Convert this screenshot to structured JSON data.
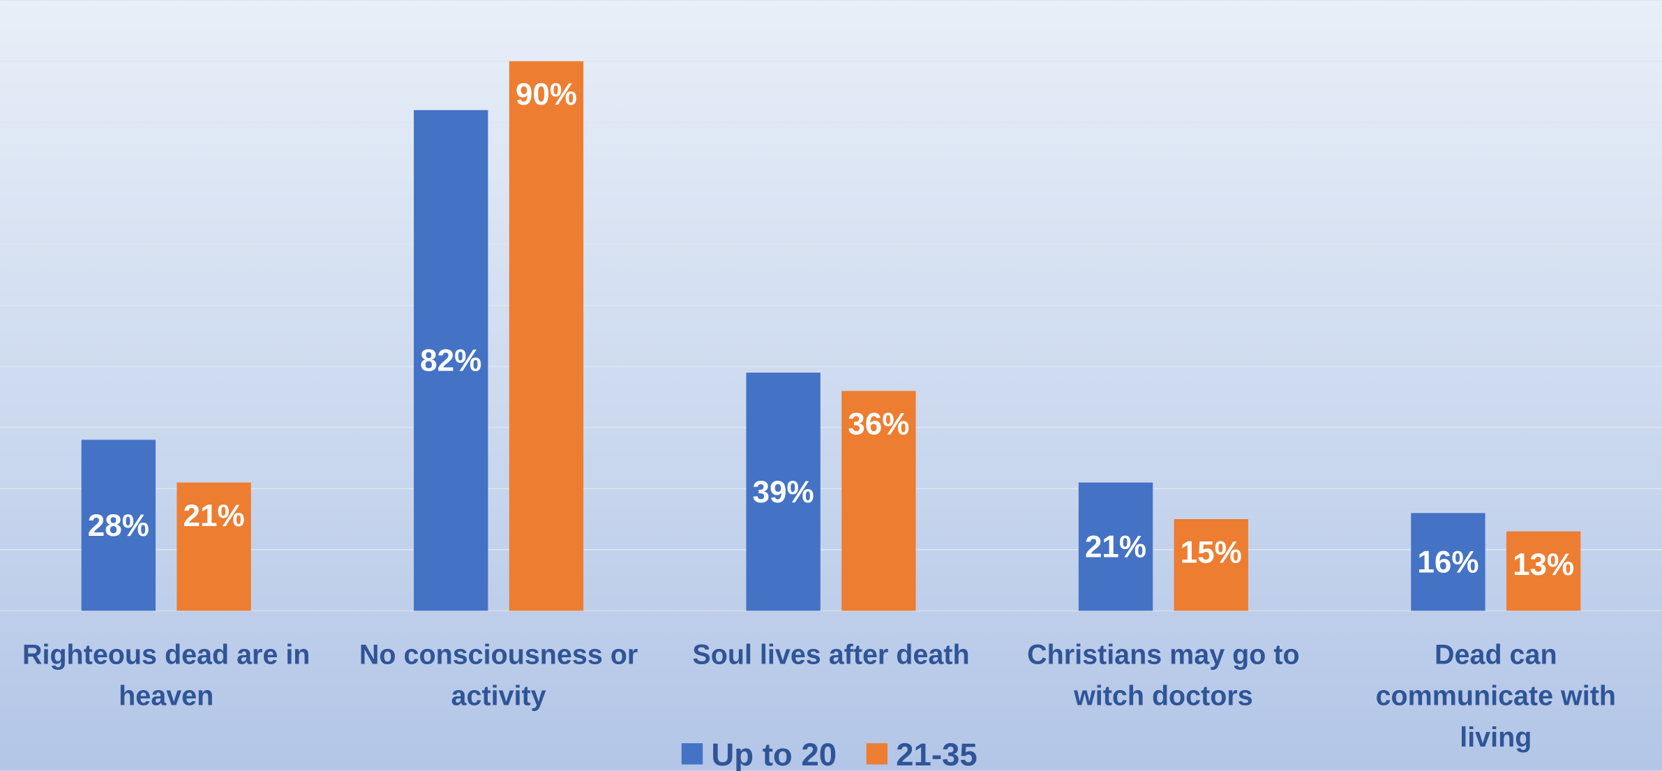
{
  "chart_data": {
    "type": "bar",
    "categories": [
      "Righteous dead are in heaven",
      "No consciousness or activity",
      "Soul lives after death",
      "Christians may go to witch doctors",
      "Dead can communicate with living"
    ],
    "series": [
      {
        "name": "Up to 20",
        "color": "#4472c4",
        "values": [
          28,
          82,
          39,
          21,
          16
        ],
        "value_labels": [
          "28%",
          "82%",
          "39%",
          "21%",
          "16%"
        ]
      },
      {
        "name": "21-35",
        "color": "#ed7d31",
        "values": [
          21,
          90,
          36,
          15,
          13
        ],
        "value_labels": [
          "21%",
          "90%",
          "36%",
          "15%",
          "13%"
        ]
      }
    ],
    "ylim": [
      0,
      100
    ],
    "yticks": [
      0,
      10,
      20,
      30,
      40,
      50,
      60,
      70,
      80,
      90,
      100
    ],
    "grid": true,
    "legend": "bottom"
  }
}
